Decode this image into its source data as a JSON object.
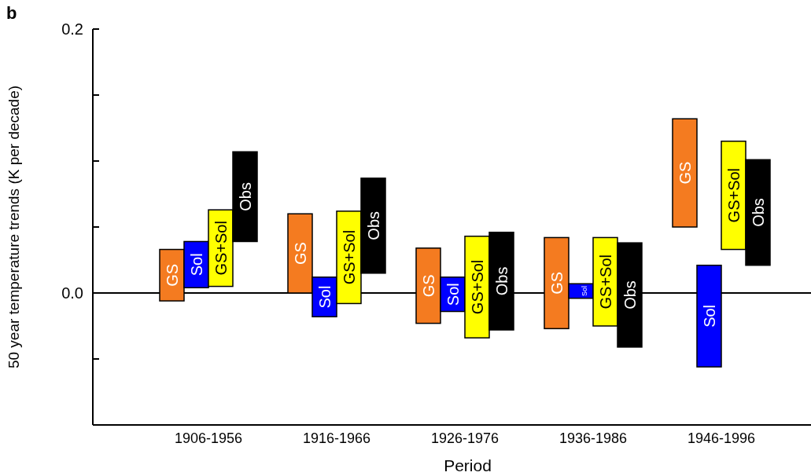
{
  "chart_data": {
    "type": "bar",
    "title": "b",
    "xlabel": "Period",
    "ylabel": "50 year temperature trends (K per decade)",
    "categories": [
      "1906-1956",
      "1916-1966",
      "1926-1976",
      "1936-1986",
      "1946-1996"
    ],
    "series": [
      {
        "name": "GS",
        "color": "#f47b20",
        "base": [
          -0.006,
          0.0,
          -0.023,
          -0.027,
          0.05
        ],
        "values": [
          0.039,
          0.06,
          0.057,
          0.069,
          0.082
        ]
      },
      {
        "name": "Sol",
        "color": "#0000ff",
        "base": [
          0.004,
          -0.018,
          -0.014,
          -0.004,
          -0.056
        ],
        "values": [
          0.035,
          0.03,
          0.026,
          0.011,
          0.077
        ]
      },
      {
        "name": "GS+Sol",
        "color": "#ffff00",
        "base": [
          0.005,
          -0.008,
          -0.034,
          -0.025,
          0.033
        ],
        "values": [
          0.058,
          0.07,
          0.077,
          0.067,
          0.082
        ]
      },
      {
        "name": "Obs",
        "color": "#000000",
        "base": [
          0.039,
          0.015,
          -0.028,
          -0.041,
          0.021
        ],
        "values": [
          0.068,
          0.072,
          0.074,
          0.079,
          0.08
        ]
      }
    ],
    "ylim": [
      -0.1,
      0.2
    ],
    "yticks": [
      {
        "value": -0.05,
        "label": null
      },
      {
        "value": 0,
        "label": "0.0"
      },
      {
        "value": 0.05,
        "label": null
      },
      {
        "value": 0.1,
        "label": null
      },
      {
        "value": 0.15,
        "label": null
      },
      {
        "value": 0.2,
        "label": "0.2"
      }
    ],
    "ref_lines": [
      {
        "axis": "y",
        "value": 0,
        "color": "#000000"
      }
    ],
    "grid": false,
    "legend": false
  }
}
